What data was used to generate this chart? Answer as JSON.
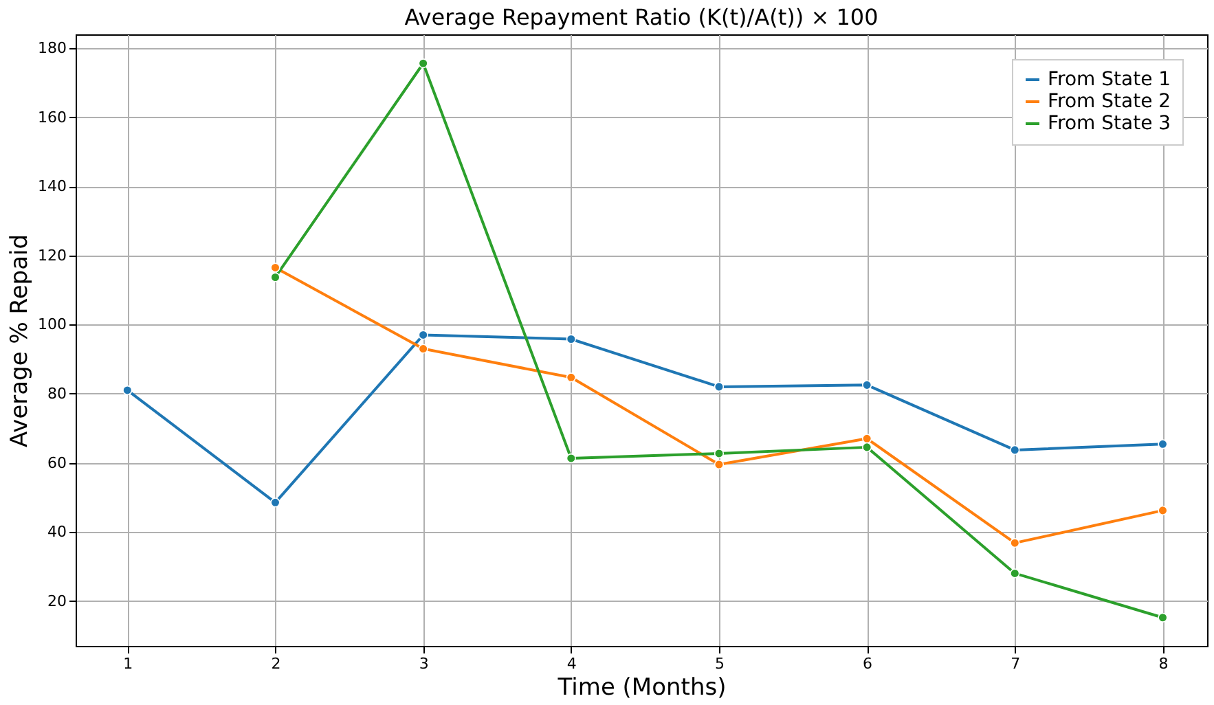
{
  "chart_data": {
    "type": "line",
    "title": "Average Repayment Ratio (K(t)/A(t)) × 100",
    "xlabel": "Time (Months)",
    "ylabel": "Average % Repaid",
    "x": [
      1,
      2,
      3,
      4,
      5,
      6,
      7,
      8
    ],
    "series": [
      {
        "name": "From State 1",
        "color": "#1f77b4",
        "values": [
          81,
          48.5,
          97,
          95.8,
          82,
          82.5,
          63.7,
          65.4
        ]
      },
      {
        "name": "From State 2",
        "color": "#ff7f0e",
        "values": [
          null,
          116.5,
          93,
          84.7,
          59.5,
          67,
          36.8,
          46.2
        ]
      },
      {
        "name": "From State 3",
        "color": "#2ca02c",
        "values": [
          null,
          113.7,
          175.6,
          61.3,
          62.7,
          64.5,
          28,
          15.2
        ]
      }
    ],
    "xlim": [
      0.65,
      8.3
    ],
    "xticks": [
      1,
      2,
      3,
      4,
      5,
      6,
      7,
      8
    ],
    "ylim": [
      7,
      184
    ],
    "yticks": [
      20,
      40,
      60,
      80,
      100,
      120,
      140,
      160,
      180
    ],
    "grid": true,
    "legend": "top right",
    "marker": "circle",
    "line_style": "solid"
  }
}
